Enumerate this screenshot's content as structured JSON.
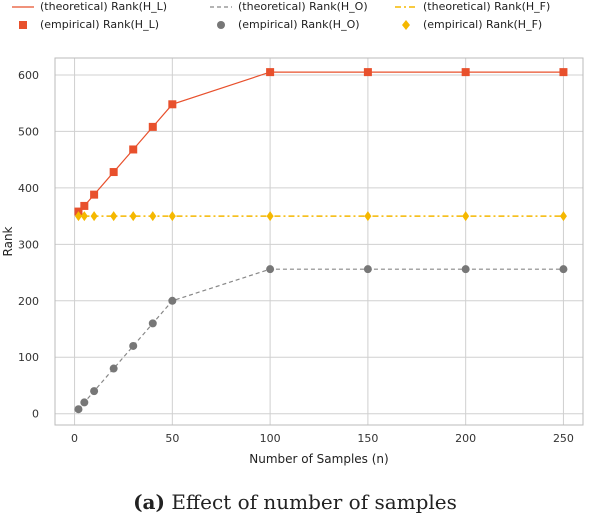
{
  "legend": [
    {
      "label": "(theoretical) Rank(H_L)",
      "kind": "line",
      "color": "#e8502c",
      "dash": "none"
    },
    {
      "label": "(theoretical) Rank(H_O)",
      "kind": "line",
      "color": "#888888",
      "dash": "4,3"
    },
    {
      "label": "(theoretical) Rank(H_F)",
      "kind": "line",
      "color": "#f5b800",
      "dash": "6,3,2,3"
    },
    {
      "label": "(empirical) Rank(H_L)",
      "kind": "square",
      "color": "#e8502c"
    },
    {
      "label": "(empirical) Rank(H_O)",
      "kind": "circle",
      "color": "#777777"
    },
    {
      "label": "(empirical) Rank(H_F)",
      "kind": "diamond",
      "color": "#f5b800"
    }
  ],
  "caption": {
    "bold": "(a)",
    "text": "Effect of number of samples"
  },
  "chart_data": {
    "type": "line",
    "xlabel": "Number of Samples (n)",
    "ylabel": "Rank",
    "xlim": [
      -10,
      260
    ],
    "ylim": [
      -20,
      630
    ],
    "xticks": [
      0,
      50,
      100,
      150,
      200,
      250
    ],
    "yticks": [
      0,
      100,
      200,
      300,
      400,
      500,
      600
    ],
    "grid": true,
    "legend_position": "top",
    "series": [
      {
        "name": "(theoretical) Rank(H_L)",
        "style": "line",
        "color": "#e8502c",
        "x": [
          2,
          5,
          10,
          20,
          30,
          40,
          50,
          100,
          150,
          200,
          250
        ],
        "y": [
          358,
          368,
          388,
          428,
          468,
          508,
          548,
          605,
          605,
          605,
          605
        ]
      },
      {
        "name": "(empirical) Rank(H_L)",
        "style": "square",
        "color": "#e8502c",
        "x": [
          2,
          5,
          10,
          20,
          30,
          40,
          50,
          100,
          150,
          200,
          250
        ],
        "y": [
          358,
          368,
          388,
          428,
          468,
          508,
          548,
          605,
          605,
          605,
          605
        ]
      },
      {
        "name": "(theoretical) Rank(H_O)",
        "style": "dashed",
        "color": "#888888",
        "x": [
          2,
          5,
          10,
          20,
          30,
          40,
          50,
          100,
          150,
          200,
          250
        ],
        "y": [
          8,
          20,
          40,
          80,
          120,
          160,
          200,
          256,
          256,
          256,
          256
        ]
      },
      {
        "name": "(empirical) Rank(H_O)",
        "style": "circle",
        "color": "#777777",
        "x": [
          2,
          5,
          10,
          20,
          30,
          40,
          50,
          100,
          150,
          200,
          250
        ],
        "y": [
          8,
          20,
          40,
          80,
          120,
          160,
          200,
          256,
          256,
          256,
          256
        ]
      },
      {
        "name": "(theoretical) Rank(H_F)",
        "style": "dashdot",
        "color": "#f5b800",
        "x": [
          2,
          5,
          10,
          20,
          30,
          40,
          50,
          100,
          150,
          200,
          250
        ],
        "y": [
          350,
          350,
          350,
          350,
          350,
          350,
          350,
          350,
          350,
          350,
          350
        ]
      },
      {
        "name": "(empirical) Rank(H_F)",
        "style": "diamond",
        "color": "#f5b800",
        "x": [
          2,
          5,
          10,
          20,
          30,
          40,
          50,
          100,
          150,
          200,
          250
        ],
        "y": [
          350,
          350,
          350,
          350,
          350,
          350,
          350,
          350,
          350,
          350,
          350
        ]
      }
    ]
  }
}
